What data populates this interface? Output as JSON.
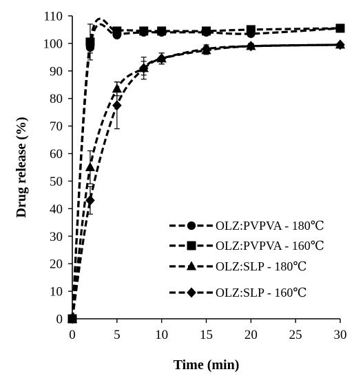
{
  "chart_data": {
    "type": "line",
    "xlabel": "Time (min)",
    "ylabel": "Drug release (%)",
    "xlim": [
      0,
      30
    ],
    "ylim": [
      0,
      110
    ],
    "xticks": [
      0,
      5,
      10,
      15,
      20,
      25,
      30
    ],
    "yticks": [
      0,
      10,
      20,
      30,
      40,
      50,
      60,
      70,
      80,
      90,
      100,
      110
    ],
    "grid": false,
    "legend_position": "bottom-right",
    "series": [
      {
        "name": "OLZ:PVPVA - 180℃",
        "marker": "circle",
        "x": [
          0,
          2,
          5,
          8,
          10,
          15,
          20,
          30
        ],
        "y": [
          0,
          98.5,
          103,
          104,
          104,
          104,
          103.5,
          105.5
        ],
        "err": [
          0,
          2,
          1,
          1,
          1,
          1,
          1,
          1
        ]
      },
      {
        "name": "OLZ:PVPVA - 160℃",
        "marker": "square",
        "x": [
          0,
          2,
          5,
          8,
          10,
          15,
          20,
          30
        ],
        "y": [
          0,
          100.5,
          104.5,
          104.5,
          104.5,
          104.5,
          105,
          105.5
        ],
        "err": [
          0,
          6.5,
          1,
          1,
          1,
          1,
          1,
          1
        ]
      },
      {
        "name": "OLZ:SLP - 180℃",
        "marker": "triangle",
        "x": [
          0,
          2,
          5,
          8,
          10,
          15,
          20,
          30
        ],
        "y": [
          0,
          55,
          83.5,
          91,
          94.5,
          97.5,
          99,
          99.5
        ],
        "err": [
          0,
          6,
          2.5,
          2.5,
          2,
          1.5,
          1,
          0.5
        ]
      },
      {
        "name": "OLZ:SLP - 160℃",
        "marker": "diamond",
        "x": [
          0,
          2,
          5,
          8,
          10,
          15,
          20,
          30
        ],
        "y": [
          0,
          43,
          77.5,
          91,
          94.5,
          98,
          99,
          99.5
        ],
        "err": [
          0,
          5,
          8.5,
          4,
          2,
          1.5,
          1,
          0.5
        ]
      }
    ]
  }
}
